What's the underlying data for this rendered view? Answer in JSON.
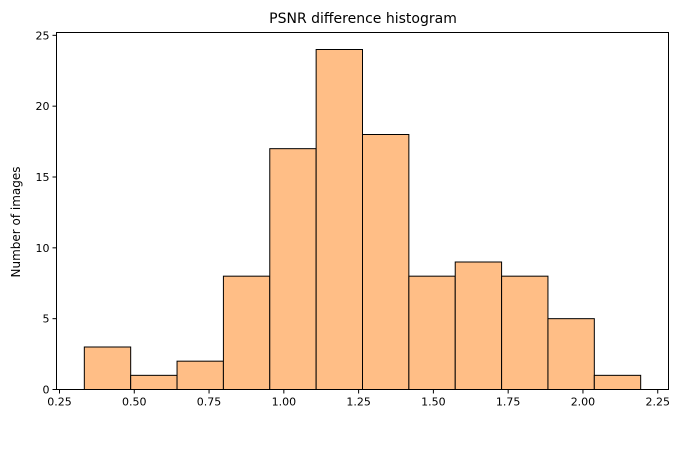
{
  "chart_data": {
    "type": "bar",
    "title": "PSNR difference histogram",
    "xlabel": "",
    "ylabel": "Number of images",
    "bin_edges": [
      0.333,
      0.488,
      0.643,
      0.798,
      0.953,
      1.108,
      1.263,
      1.418,
      1.573,
      1.728,
      1.883,
      2.038,
      2.193
    ],
    "values": [
      3,
      1,
      2,
      8,
      17,
      24,
      18,
      8,
      9,
      8,
      5,
      1
    ],
    "xlim": [
      0.24,
      2.286
    ],
    "ylim": [
      0,
      25.2
    ],
    "xticks": [
      0.25,
      0.5,
      0.75,
      1.0,
      1.25,
      1.5,
      1.75,
      2.0,
      2.25
    ],
    "xtick_labels": [
      "0.25",
      "0.50",
      "0.75",
      "1.00",
      "1.25",
      "1.50",
      "1.75",
      "2.00",
      "2.25"
    ],
    "yticks": [
      0,
      5,
      10,
      15,
      20,
      25
    ],
    "ytick_labels": [
      "0",
      "5",
      "10",
      "15",
      "20",
      "25"
    ],
    "bar_color": "#ffbe86",
    "edge_color": "#000000",
    "grid": false,
    "legend": "none"
  }
}
